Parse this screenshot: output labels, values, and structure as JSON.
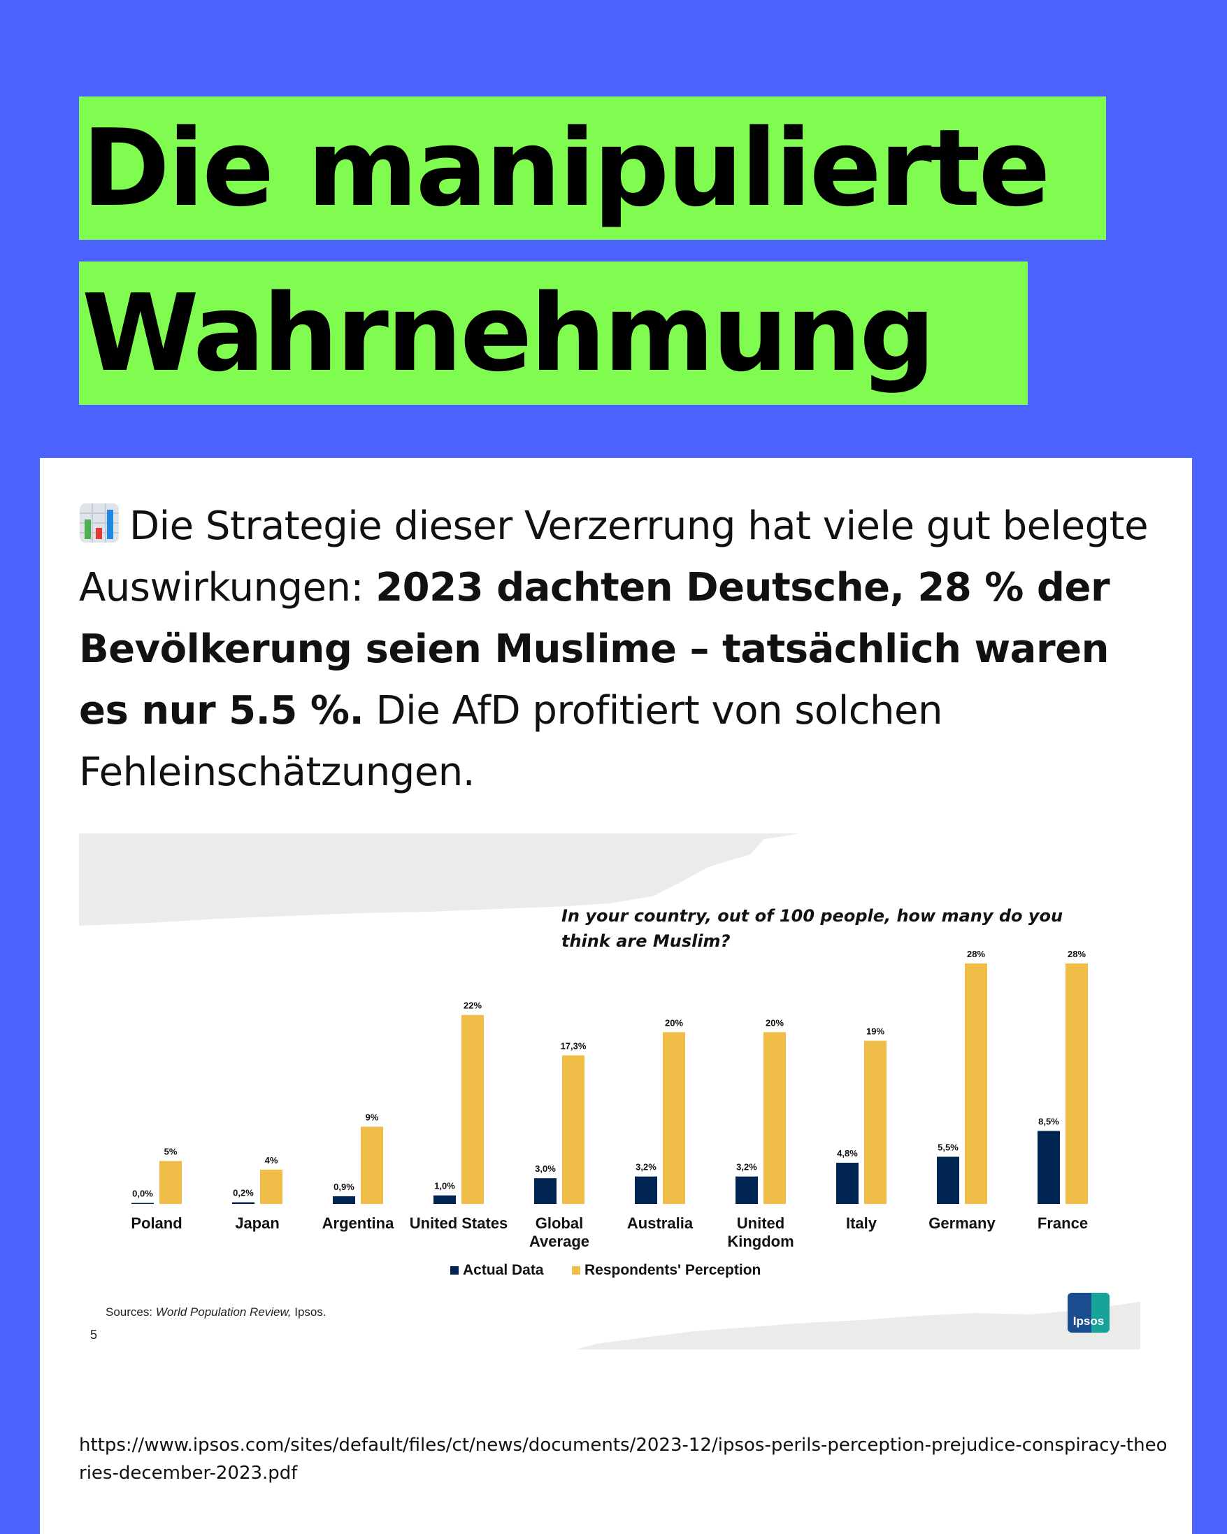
{
  "title": {
    "line1": "Die manipulierte",
    "line2": "Wahrnehmung"
  },
  "intro": {
    "icon": "bar-chart-emoji-icon",
    "text_regular_1": "Die Strategie dieser Verzerrung hat viele gut belegte Auswirkungen: ",
    "text_bold": "2023 dachten Deutsche, 28 % der Bevölkerung seien Muslime – tatsächlich waren es nur 5.5 %.",
    "text_regular_2": " Die AfD profitiert von solchen Fehleinschätzungen."
  },
  "chart_data": {
    "type": "bar",
    "title": "In your country, out of 100 people, how many do you think are Muslim?",
    "categories": [
      [
        "Poland"
      ],
      [
        "Japan"
      ],
      [
        "Argentina"
      ],
      [
        "United States"
      ],
      [
        "Global",
        "Average"
      ],
      [
        "Australia"
      ],
      [
        "United",
        "Kingdom"
      ],
      [
        "Italy"
      ],
      [
        "Germany"
      ],
      [
        "France"
      ]
    ],
    "series": [
      {
        "name": "Actual Data",
        "color": "#002553",
        "values": [
          0.0,
          0.2,
          0.9,
          1.0,
          3.0,
          3.2,
          3.2,
          4.8,
          5.5,
          8.5
        ],
        "labels": [
          "0,0%",
          "0,2%",
          "0,9%",
          "1,0%",
          "3,0%",
          "3,2%",
          "3,2%",
          "4,8%",
          "5,5%",
          "8,5%"
        ]
      },
      {
        "name": "Respondents' Perception",
        "color": "#f0bd49",
        "values": [
          5,
          4,
          9,
          22,
          17.3,
          20,
          20,
          19,
          28,
          28
        ],
        "labels": [
          "5%",
          "4%",
          "9%",
          "22%",
          "17,3%",
          "20%",
          "20%",
          "19%",
          "28%",
          "28%"
        ]
      }
    ],
    "ylim": [
      0,
      28
    ],
    "legend": "bottom-center",
    "grid": false,
    "sources_prefix": "Sources: ",
    "sources_italic": "World Population Review,",
    "sources_suffix": " Ipsos.",
    "page_number": "5",
    "logo_text": "Ipsos"
  },
  "source_url": "https://www.ipsos.com/sites/default/files/ct/news/documents/2023-12/ipsos-perils-perception-prejudice-conspiracy-theories-december-2023.pdf"
}
